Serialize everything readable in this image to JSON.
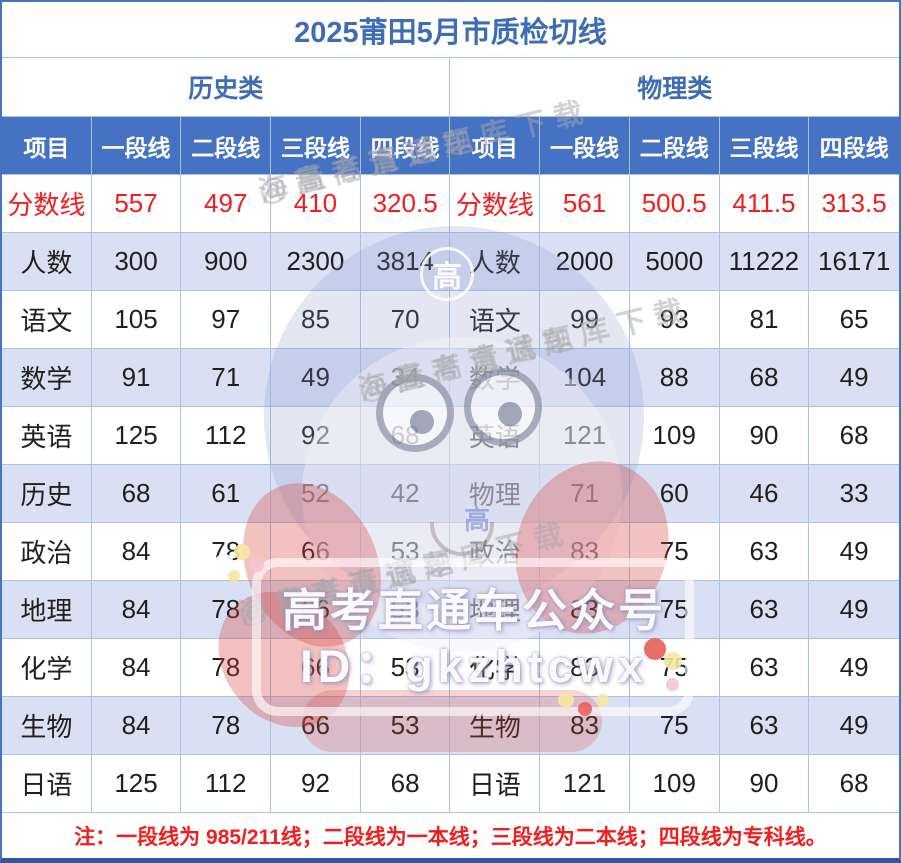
{
  "title": "2025莆田5月市质检切线",
  "sections": [
    {
      "label": "历史类"
    },
    {
      "label": "物理类"
    }
  ],
  "column_headers": [
    "项目",
    "一段线",
    "二段线",
    "三段线",
    "四段线",
    "项目",
    "一段线",
    "二段线",
    "三段线",
    "四段线"
  ],
  "rows": [
    {
      "cells": [
        "分数线",
        "557",
        "497",
        "410",
        "320.5",
        "分数线",
        "561",
        "500.5",
        "411.5",
        "313.5"
      ],
      "red": true,
      "zebra": false
    },
    {
      "cells": [
        "人数",
        "300",
        "900",
        "2300",
        "3814",
        "人数",
        "2000",
        "5000",
        "11222",
        "16171"
      ],
      "red": false,
      "zebra": true
    },
    {
      "cells": [
        "语文",
        "105",
        "97",
        "85",
        "70",
        "语文",
        "99",
        "93",
        "81",
        "65"
      ],
      "red": false,
      "zebra": false
    },
    {
      "cells": [
        "数学",
        "91",
        "71",
        "49",
        "34",
        "数学",
        "104",
        "88",
        "68",
        "49"
      ],
      "red": false,
      "zebra": true
    },
    {
      "cells": [
        "英语",
        "125",
        "112",
        "92",
        "68",
        "英语",
        "121",
        "109",
        "90",
        "68"
      ],
      "red": false,
      "zebra": false
    },
    {
      "cells": [
        "历史",
        "68",
        "61",
        "52",
        "42",
        "物理",
        "71",
        "60",
        "46",
        "33"
      ],
      "red": false,
      "zebra": true
    },
    {
      "cells": [
        "政治",
        "84",
        "78",
        "66",
        "53",
        "政治",
        "83",
        "75",
        "63",
        "49"
      ],
      "red": false,
      "zebra": false
    },
    {
      "cells": [
        "地理",
        "84",
        "78",
        "66",
        "53",
        "地理",
        "83",
        "75",
        "63",
        "49"
      ],
      "red": false,
      "zebra": true
    },
    {
      "cells": [
        "化学",
        "84",
        "78",
        "66",
        "53",
        "化学",
        "83",
        "75",
        "63",
        "49"
      ],
      "red": false,
      "zebra": false
    },
    {
      "cells": [
        "生物",
        "84",
        "78",
        "66",
        "53",
        "生物",
        "83",
        "75",
        "63",
        "49"
      ],
      "red": false,
      "zebra": true
    },
    {
      "cells": [
        "日语",
        "125",
        "112",
        "92",
        "68",
        "日语",
        "121",
        "109",
        "90",
        "68"
      ],
      "red": false,
      "zebra": false
    }
  ],
  "note": "注：一段线为 985/211线；二段线为一本线；三段线为二本线；四段线为专科线。",
  "watermark": {
    "brand_text": "高考直通车公众号",
    "id_text": "ID：gkzhtcwx",
    "diagonal_line1": "@高考直通车",
    "diagonal_line2": "海量高清试题库下载",
    "cap_glyph": "高"
  },
  "colors": {
    "header_bg": "#4672C4",
    "title_text": "#3E6CB5",
    "zebra_row_bg": "#D9E0F3",
    "grid_line": "#A9C3E2",
    "score_red": "#F21D1D",
    "body_text": "#1F1F1F"
  }
}
